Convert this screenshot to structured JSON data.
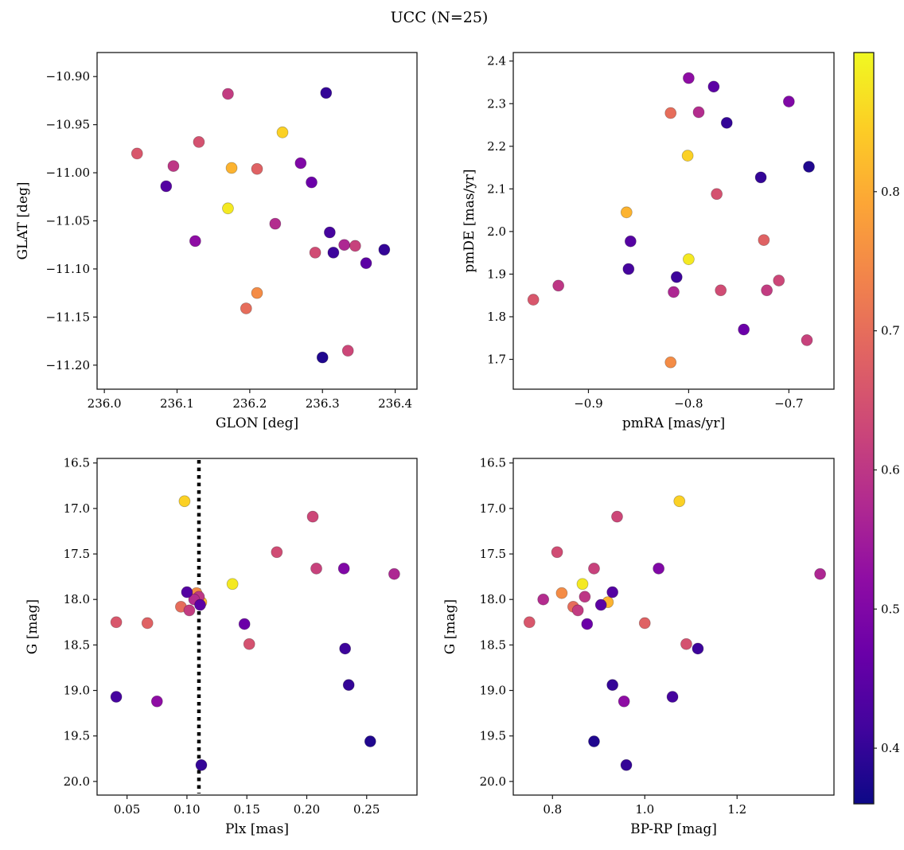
{
  "chart_data": {
    "type": "scatter",
    "title": "UCC (N=25)",
    "n_points": 25,
    "legend": "none",
    "grid": false,
    "colormap": {
      "name": "plasma",
      "anchors": [
        [
          0.0,
          "#0d0887"
        ],
        [
          0.1,
          "#41049d"
        ],
        [
          0.2,
          "#6a00a8"
        ],
        [
          0.3,
          "#8f0da4"
        ],
        [
          0.4,
          "#b12a90"
        ],
        [
          0.5,
          "#cc4778"
        ],
        [
          0.6,
          "#e16462"
        ],
        [
          0.7,
          "#f2844b"
        ],
        [
          0.8,
          "#fca636"
        ],
        [
          0.9,
          "#fcce25"
        ],
        [
          1.0,
          "#f0f921"
        ]
      ]
    },
    "colorbar": {
      "vmin": 0.36,
      "vmax": 0.9,
      "ticks": [
        0.4,
        0.5,
        0.6,
        0.7,
        0.8
      ],
      "tick_labels": [
        "0.4",
        "0.5",
        "0.6",
        "0.7",
        "0.8"
      ],
      "position": "right-full-height"
    },
    "subplots": [
      {
        "x_key": "glon",
        "y_key": "glat",
        "xlabel": "GLON [deg]",
        "ylabel": "GLAT [deg]",
        "xlim": [
          235.99,
          236.43
        ],
        "ylim_bottom": -11.225,
        "ylim_top": -10.875,
        "y_inverted": false,
        "xticks": [
          236.0,
          236.1,
          236.2,
          236.3,
          236.4
        ],
        "xtick_labels": [
          "236.0",
          "236.1",
          "236.2",
          "236.3",
          "236.4"
        ],
        "yticks": [
          -10.9,
          -10.95,
          -11.0,
          -11.05,
          -11.1,
          -11.15,
          -11.2
        ],
        "ytick_labels": [
          "−10.90",
          "−10.95",
          "−11.00",
          "−11.05",
          "−11.10",
          "−11.15",
          "−11.20"
        ]
      },
      {
        "x_key": "pmra",
        "y_key": "pmde",
        "xlabel": "pmRA [mas/yr]",
        "ylabel": "pmDE [mas/yr]",
        "xlim": [
          -0.975,
          -0.655
        ],
        "ylim_bottom": 1.63,
        "ylim_top": 2.42,
        "y_inverted": false,
        "xticks": [
          -0.9,
          -0.8,
          -0.7
        ],
        "xtick_labels": [
          "−0.9",
          "−0.8",
          "−0.7"
        ],
        "yticks": [
          1.7,
          1.8,
          1.9,
          2.0,
          2.1,
          2.2,
          2.3,
          2.4
        ],
        "ytick_labels": [
          "1.7",
          "1.8",
          "1.9",
          "2.0",
          "2.1",
          "2.2",
          "2.3",
          "2.4"
        ]
      },
      {
        "x_key": "plx",
        "y_key": "g",
        "xlabel": "Plx [mas]",
        "ylabel": "G [mag]",
        "xlim": [
          0.025,
          0.292
        ],
        "ylim_bottom": 20.15,
        "ylim_top": 16.45,
        "y_inverted": true,
        "xticks": [
          0.05,
          0.1,
          0.15,
          0.2,
          0.25
        ],
        "xtick_labels": [
          "0.05",
          "0.10",
          "0.15",
          "0.20",
          "0.25"
        ],
        "yticks": [
          16.5,
          17.0,
          17.5,
          18.0,
          18.5,
          19.0,
          19.5,
          20.0
        ],
        "ytick_labels": [
          "16.5",
          "17.0",
          "17.5",
          "18.0",
          "18.5",
          "19.0",
          "19.5",
          "20.0"
        ],
        "vline": {
          "x": 0.11,
          "style": "dotted",
          "color": "#000000"
        }
      },
      {
        "x_key": "bprp",
        "y_key": "g",
        "xlabel": "BP-RP [mag]",
        "ylabel": "G [mag]",
        "xlim": [
          0.715,
          1.41
        ],
        "ylim_bottom": 20.15,
        "ylim_top": 16.45,
        "y_inverted": true,
        "xticks": [
          0.8,
          1.0,
          1.2
        ],
        "xtick_labels": [
          "0.8",
          "1.0",
          "1.2"
        ],
        "yticks": [
          16.5,
          17.0,
          17.5,
          18.0,
          18.5,
          19.0,
          19.5,
          20.0
        ],
        "ytick_labels": [
          "16.5",
          "17.0",
          "17.5",
          "18.0",
          "18.5",
          "19.0",
          "19.5",
          "20.0"
        ]
      }
    ],
    "points": [
      {
        "glon": 236.17,
        "glat": -11.037,
        "pmra": -0.8,
        "pmde": 1.935,
        "plx": 0.138,
        "g": 17.83,
        "bprp": 0.865,
        "c": 0.88
      },
      {
        "glon": 236.245,
        "glat": -10.958,
        "pmra": -0.801,
        "pmde": 2.178,
        "plx": 0.098,
        "g": 16.92,
        "bprp": 1.075,
        "c": 0.85
      },
      {
        "glon": 236.175,
        "glat": -10.995,
        "pmra": -0.862,
        "pmde": 2.045,
        "plx": 0.112,
        "g": 18.03,
        "bprp": 0.92,
        "c": 0.81
      },
      {
        "glon": 236.21,
        "glat": -11.125,
        "pmra": -0.818,
        "pmde": 1.693,
        "plx": 0.108,
        "g": 17.93,
        "bprp": 0.82,
        "c": 0.75
      },
      {
        "glon": 236.195,
        "glat": -11.141,
        "pmra": -0.818,
        "pmde": 2.278,
        "plx": 0.095,
        "g": 18.08,
        "bprp": 0.845,
        "c": 0.7
      },
      {
        "glon": 236.21,
        "glat": -10.996,
        "pmra": -0.725,
        "pmde": 1.98,
        "plx": 0.067,
        "g": 18.26,
        "bprp": 1.0,
        "c": 0.68
      },
      {
        "glon": 236.045,
        "glat": -10.98,
        "pmra": -0.955,
        "pmde": 1.84,
        "plx": 0.041,
        "g": 18.25,
        "bprp": 0.75,
        "c": 0.66
      },
      {
        "glon": 236.13,
        "glat": -10.968,
        "pmra": -0.772,
        "pmde": 2.088,
        "plx": 0.152,
        "g": 18.49,
        "bprp": 1.09,
        "c": 0.65
      },
      {
        "glon": 236.29,
        "glat": -11.083,
        "pmra": -0.768,
        "pmde": 1.862,
        "plx": 0.175,
        "g": 17.48,
        "bprp": 0.81,
        "c": 0.64
      },
      {
        "glon": 236.335,
        "glat": -11.185,
        "pmra": -0.71,
        "pmde": 1.885,
        "plx": 0.205,
        "g": 17.09,
        "bprp": 0.94,
        "c": 0.63
      },
      {
        "glon": 236.345,
        "glat": -11.076,
        "pmra": -0.682,
        "pmde": 1.745,
        "plx": 0.208,
        "g": 17.66,
        "bprp": 0.89,
        "c": 0.62
      },
      {
        "glon": 236.17,
        "glat": -10.918,
        "pmra": -0.722,
        "pmde": 1.862,
        "plx": 0.102,
        "g": 18.12,
        "bprp": 0.855,
        "c": 0.61
      },
      {
        "glon": 236.095,
        "glat": -10.993,
        "pmra": -0.93,
        "pmde": 1.873,
        "plx": 0.11,
        "g": 17.97,
        "bprp": 0.87,
        "c": 0.6
      },
      {
        "glon": 236.235,
        "glat": -11.053,
        "pmra": -0.79,
        "pmde": 2.28,
        "plx": 0.106,
        "g": 18.0,
        "bprp": 0.78,
        "c": 0.58
      },
      {
        "glon": 236.33,
        "glat": -11.075,
        "pmra": -0.815,
        "pmde": 1.858,
        "plx": 0.273,
        "g": 17.72,
        "bprp": 1.38,
        "c": 0.57
      },
      {
        "glon": 236.125,
        "glat": -11.071,
        "pmra": -0.8,
        "pmde": 2.36,
        "plx": 0.075,
        "g": 19.12,
        "bprp": 0.955,
        "c": 0.52
      },
      {
        "glon": 236.27,
        "glat": -10.99,
        "pmra": -0.7,
        "pmde": 2.305,
        "plx": 0.231,
        "g": 17.66,
        "bprp": 1.03,
        "c": 0.5
      },
      {
        "glon": 236.285,
        "glat": -11.01,
        "pmra": -0.745,
        "pmde": 1.77,
        "plx": 0.148,
        "g": 18.27,
        "bprp": 0.875,
        "c": 0.47
      },
      {
        "glon": 236.36,
        "glat": -11.094,
        "pmra": -0.775,
        "pmde": 2.34,
        "plx": 0.111,
        "g": 18.06,
        "bprp": 0.905,
        "c": 0.45
      },
      {
        "glon": 236.085,
        "glat": -11.014,
        "pmra": -0.858,
        "pmde": 1.977,
        "plx": 0.1,
        "g": 17.92,
        "bprp": 0.93,
        "c": 0.44
      },
      {
        "glon": 236.31,
        "glat": -11.062,
        "pmra": -0.86,
        "pmde": 1.912,
        "plx": 0.041,
        "g": 19.07,
        "bprp": 1.06,
        "c": 0.42
      },
      {
        "glon": 236.315,
        "glat": -11.083,
        "pmra": -0.812,
        "pmde": 1.893,
        "plx": 0.232,
        "g": 18.54,
        "bprp": 1.115,
        "c": 0.41
      },
      {
        "glon": 236.305,
        "glat": -10.917,
        "pmra": -0.762,
        "pmde": 2.255,
        "plx": 0.235,
        "g": 18.94,
        "bprp": 0.93,
        "c": 0.4
      },
      {
        "glon": 236.385,
        "glat": -11.08,
        "pmra": -0.728,
        "pmde": 2.127,
        "plx": 0.112,
        "g": 19.82,
        "bprp": 0.96,
        "c": 0.4
      },
      {
        "glon": 236.3,
        "glat": -11.192,
        "pmra": -0.68,
        "pmde": 2.152,
        "plx": 0.253,
        "g": 19.56,
        "bprp": 0.89,
        "c": 0.38
      }
    ]
  }
}
